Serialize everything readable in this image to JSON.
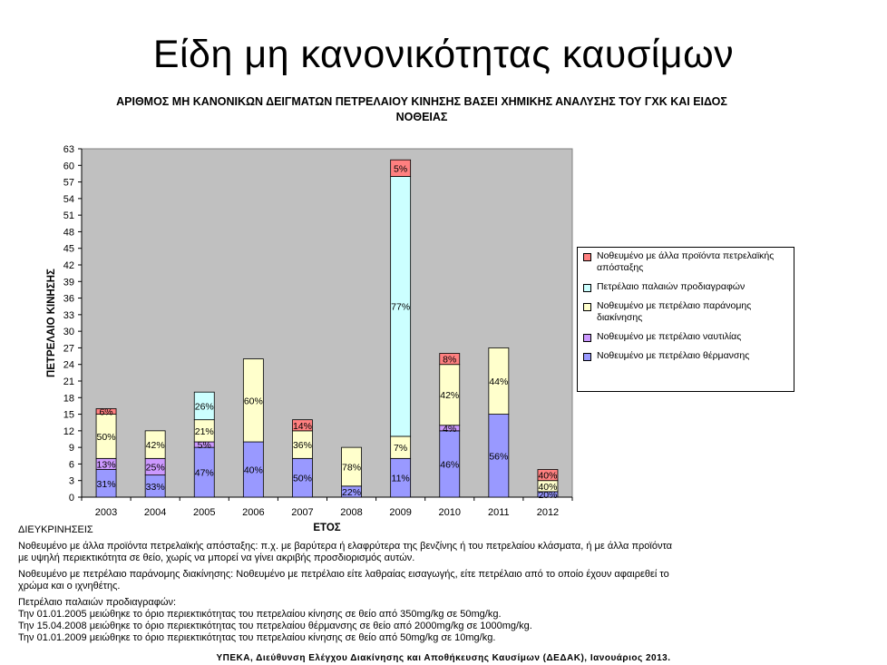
{
  "page_title": "Είδη μη κανονικότητας καυσίμων",
  "notes": {
    "heading": "ΔΙΕΥΚΡΙΝΗΣΕΙΣ",
    "paragraphs": [
      [
        "Νοθευμένο με άλλα προϊόντα πετρελαϊκής απόσταξης: π.χ. με βαρύτερα ή ελαφρύτερα της βενζίνης ή του πετρελαίου κλάσματα, ή με άλλα προϊόντα",
        "με υψηλή περιεκτικότητα σε θείο, χωρίς να μπορεί να γίνει ακριβής προσδιορισμός αυτών."
      ],
      [
        "Νοθευμένο με πετρέλαιο παράνομης διακίνησης: Νοθευμένο με πετρέλαιο είτε λαθραίας εισαγωγής, είτε πετρέλαιο από το οποίο έχουν αφαιρεθεί το",
        "χρώμα και ο ιχνηθέτης."
      ],
      [
        "Πετρέλαιο παλαιών προδιαγραφών:",
        "Την 01.01.2005 μειώθηκε το όριο περιεκτικότητας του πετρελαίου κίνησης σε θείο από 350mg/kg σε 50mg/kg.",
        "Την 15.04.2008 μειώθηκε το όριο περιεκτικότητας του πετρελαίου θέρμανσης σε θείο από 2000mg/kg σε 1000mg/kg.",
        "Την 01.01.2009 μειώθηκε το όριο περιεκτικότητας του πετρελαίου κίνησης σε θείο από 50mg/kg σε 10mg/kg."
      ]
    ]
  },
  "footer": "ΥΠΕΚΑ, Διεύθυνση Ελέγχου Διακίνησης και Αποθήκευσης Καυσίμων (ΔΕΔΑΚ), Ιανουάριος 2013.",
  "colors": {
    "plot_bg": "#c0c0c0",
    "heating": "#9999ff",
    "marine": "#cc99ff",
    "illegal": "#ffffcc",
    "old_spec": "#ccffff",
    "other": "#ff8080"
  },
  "chart_data": {
    "type": "bar",
    "stacked": true,
    "title": "ΑΡΙΘΜΟΣ ΜΗ ΚΑΝΟΝΙΚΩΝ ΔΕΙΓΜΑΤΩΝ ΠΕΤΡΕΛΑΙΟΥ ΚΙΝΗΣΗΣ ΒΑΣΕΙ ΧΗΜΙΚΗΣ ΑΝΑΛΥΣΗΣ ΤΟΥ ΓΧΚ ΚΑΙ ΕΙΔΟΣ ΝΟΘΕΙΑΣ",
    "xlabel": "ΕΤΟΣ",
    "ylabel": "ΠΕΤΡΕΛΑΙΟ ΚΙΝΗΣΗΣ",
    "ylim": [
      0,
      63
    ],
    "yticks": [
      0,
      3,
      6,
      9,
      12,
      15,
      18,
      21,
      24,
      27,
      30,
      33,
      36,
      39,
      42,
      45,
      48,
      51,
      54,
      57,
      60,
      63
    ],
    "categories": [
      "2003",
      "2004",
      "2005",
      "2006",
      "2007",
      "2008",
      "2009",
      "2010",
      "2011",
      "2012"
    ],
    "grid": false,
    "legend_position": "right",
    "series": [
      {
        "name": "Νοθευμένο με πετρέλαιο θέρμανσης",
        "color_key": "heating",
        "values": [
          5,
          4,
          9,
          10,
          7,
          2,
          7,
          12,
          15,
          1
        ],
        "labels": [
          "31%",
          "33%",
          "47%",
          "40%",
          "50%",
          "22%",
          "11%",
          "46%",
          "56%",
          "20%"
        ]
      },
      {
        "name": "Νοθευμένο με πετρέλαιο ναυτιλίας",
        "color_key": "marine",
        "values": [
          2,
          3,
          1,
          0,
          0,
          0,
          0,
          1,
          0,
          0
        ],
        "labels": [
          "13%",
          "25%",
          "5%",
          "",
          "",
          "",
          "",
          "4%",
          "",
          ""
        ]
      },
      {
        "name": "Νοθευμένο με πετρέλαιο παράνομης διακίνησης",
        "color_key": "illegal",
        "values": [
          8,
          5,
          4,
          15,
          5,
          7,
          4,
          11,
          12,
          2
        ],
        "labels": [
          "50%",
          "42%",
          "21%",
          "60%",
          "36%",
          "78%",
          "7%",
          "42%",
          "44%",
          "40%"
        ]
      },
      {
        "name": "Πετρέλαιο παλαιών προδιαγραφών",
        "color_key": "old_spec",
        "values": [
          0,
          0,
          5,
          0,
          0,
          0,
          47,
          0,
          0,
          0
        ],
        "labels": [
          "",
          "",
          "26%",
          "",
          "",
          "",
          "77%",
          "",
          "",
          ""
        ]
      },
      {
        "name": "Νοθευμένο με άλλα προϊόντα πετρελαϊκής απόσταξης",
        "color_key": "other",
        "values": [
          1,
          0,
          0,
          0,
          2,
          0,
          3,
          2,
          0,
          2
        ],
        "labels": [
          "6%",
          "",
          "",
          "",
          "14%",
          "",
          "5%",
          "8%",
          "",
          "40%"
        ]
      }
    ],
    "legend_order": [
      4,
      3,
      2,
      1,
      0
    ]
  }
}
